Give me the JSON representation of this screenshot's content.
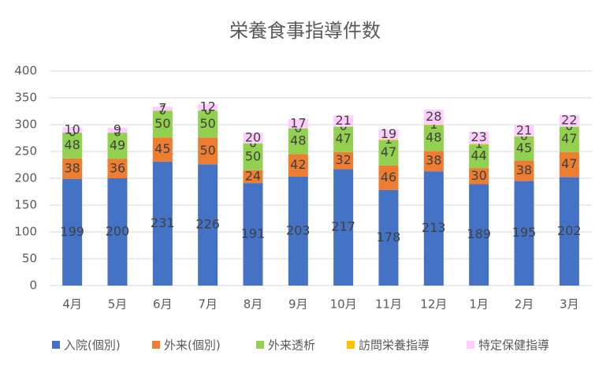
{
  "chart_data": {
    "type": "stacked-bar",
    "title": "栄養食事指導件数",
    "categories": [
      "4月",
      "5月",
      "6月",
      "7月",
      "8月",
      "9月",
      "10月",
      "11月",
      "12月",
      "1月",
      "2月",
      "3月"
    ],
    "series": [
      {
        "name": "入院(個別)",
        "color": "#4472c4",
        "values": [
          199,
          200,
          231,
          226,
          191,
          203,
          217,
          178,
          213,
          189,
          195,
          202
        ]
      },
      {
        "name": "外来(個別)",
        "color": "#ed7d31",
        "values": [
          38,
          36,
          45,
          50,
          24,
          42,
          32,
          46,
          38,
          30,
          38,
          47
        ]
      },
      {
        "name": "外来透析",
        "color": "#92d050",
        "values": [
          48,
          49,
          50,
          50,
          50,
          48,
          47,
          47,
          48,
          44,
          45,
          47
        ]
      },
      {
        "name": "訪問栄養指導",
        "color": "#ffc000",
        "values": [
          0,
          0,
          0,
          0,
          0,
          0,
          0,
          1,
          1,
          1,
          0,
          0
        ]
      },
      {
        "name": "特定保健指導",
        "color": "#ffccff",
        "values": [
          10,
          9,
          7,
          12,
          20,
          17,
          21,
          19,
          28,
          23,
          21,
          22
        ]
      }
    ],
    "ylim": [
      0,
      400
    ],
    "yticks": [
      0,
      50,
      100,
      150,
      200,
      250,
      300,
      350,
      400
    ],
    "grid": true,
    "legend": "bottom"
  }
}
